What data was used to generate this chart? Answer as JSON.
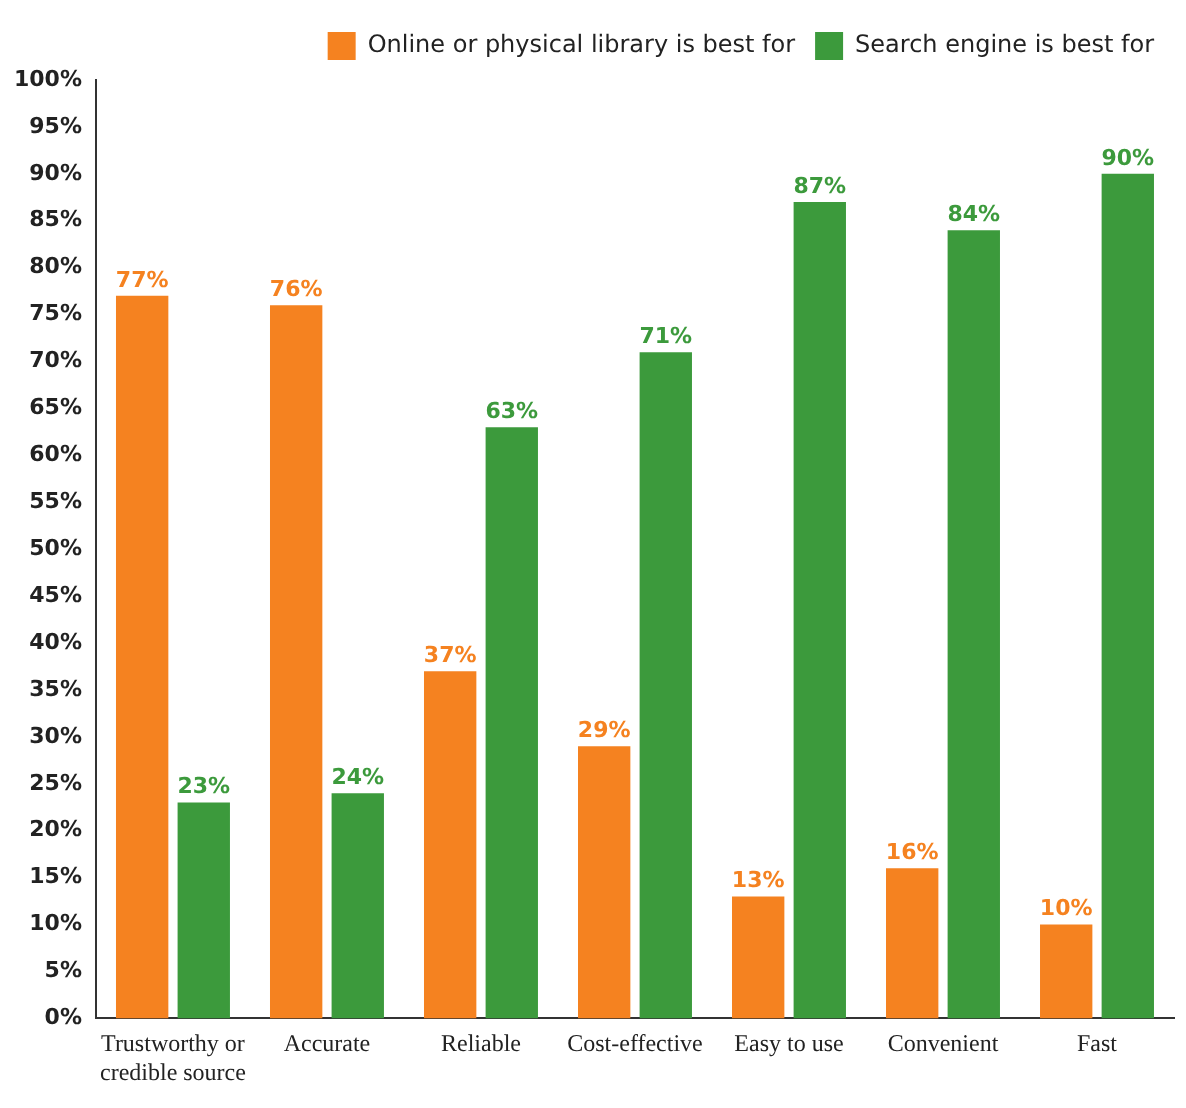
{
  "chart_data": {
    "type": "bar",
    "categories": [
      "Trustworthy or credible source",
      "Accurate",
      "Reliable",
      "Cost-effective",
      "Easy to use",
      "Convenient",
      "Fast"
    ],
    "series": [
      {
        "name": "Online or physical library is best for",
        "color": "#f58220",
        "values": [
          77,
          76,
          37,
          29,
          13,
          16,
          10
        ],
        "value_labels": [
          "77%",
          "76%",
          "37%",
          "29%",
          "13%",
          "16%",
          "10%"
        ]
      },
      {
        "name": "Search engine is best for",
        "color": "#3c9a3c",
        "values": [
          23,
          24,
          63,
          71,
          87,
          84,
          90
        ],
        "value_labels": [
          "23%",
          "24%",
          "63%",
          "71%",
          "87%",
          "84%",
          "90%"
        ]
      }
    ],
    "ylim": [
      0,
      100
    ],
    "yticks": [
      {
        "value": 0,
        "label": "0%"
      },
      {
        "value": 5,
        "label": "5%"
      },
      {
        "value": 10,
        "label": "10%"
      },
      {
        "value": 15,
        "label": "15%"
      },
      {
        "value": 20,
        "label": "20%"
      },
      {
        "value": 25,
        "label": "25%"
      },
      {
        "value": 30,
        "label": "30%"
      },
      {
        "value": 35,
        "label": "35%"
      },
      {
        "value": 40,
        "label": "40%"
      },
      {
        "value": 45,
        "label": "45%"
      },
      {
        "value": 50,
        "label": "50%"
      },
      {
        "value": 55,
        "label": "55%"
      },
      {
        "value": 60,
        "label": "60%"
      },
      {
        "value": 65,
        "label": "65%"
      },
      {
        "value": 70,
        "label": "70%"
      },
      {
        "value": 75,
        "label": "75%"
      },
      {
        "value": 80,
        "label": "80%"
      },
      {
        "value": 85,
        "label": "85%"
      },
      {
        "value": 90,
        "label": "90%"
      },
      {
        "value": 95,
        "label": "95%"
      },
      {
        "value": 100,
        "label": "100%"
      }
    ],
    "grid": false,
    "legend": "top right"
  }
}
